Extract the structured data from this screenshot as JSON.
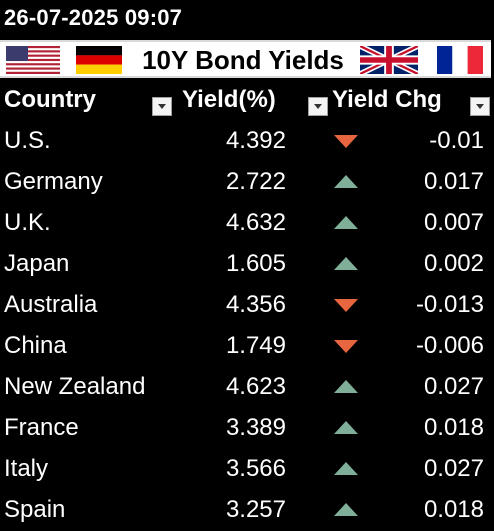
{
  "timestamp": "26-07-2025 09:07",
  "banner": {
    "title": "10Y Bond Yields",
    "flags": [
      "us-flag",
      "germany-flag",
      "uk-flag",
      "france-flag"
    ]
  },
  "colors": {
    "down_arrow": "#e8663f",
    "up_arrow": "#7fae99",
    "background": "#000000",
    "text": "#ffffff"
  },
  "table": {
    "headers": {
      "country": "Country",
      "yield": "Yield(%)",
      "yield_chg": "Yield Chg"
    },
    "rows": [
      {
        "country": "U.S.",
        "yield": "4.392",
        "direction": "down",
        "chg": "-0.01"
      },
      {
        "country": "Germany",
        "yield": "2.722",
        "direction": "up",
        "chg": "0.017"
      },
      {
        "country": "U.K.",
        "yield": "4.632",
        "direction": "up",
        "chg": "0.007"
      },
      {
        "country": "Japan",
        "yield": "1.605",
        "direction": "up",
        "chg": "0.002"
      },
      {
        "country": "Australia",
        "yield": "4.356",
        "direction": "down",
        "chg": "-0.013"
      },
      {
        "country": "China",
        "yield": "1.749",
        "direction": "down",
        "chg": "-0.006"
      },
      {
        "country": "New Zealand",
        "yield": "4.623",
        "direction": "up",
        "chg": "0.027"
      },
      {
        "country": "France",
        "yield": "3.389",
        "direction": "up",
        "chg": "0.018"
      },
      {
        "country": "Italy",
        "yield": "3.566",
        "direction": "up",
        "chg": "0.027"
      },
      {
        "country": "Spain",
        "yield": "3.257",
        "direction": "up",
        "chg": "0.018"
      }
    ]
  }
}
